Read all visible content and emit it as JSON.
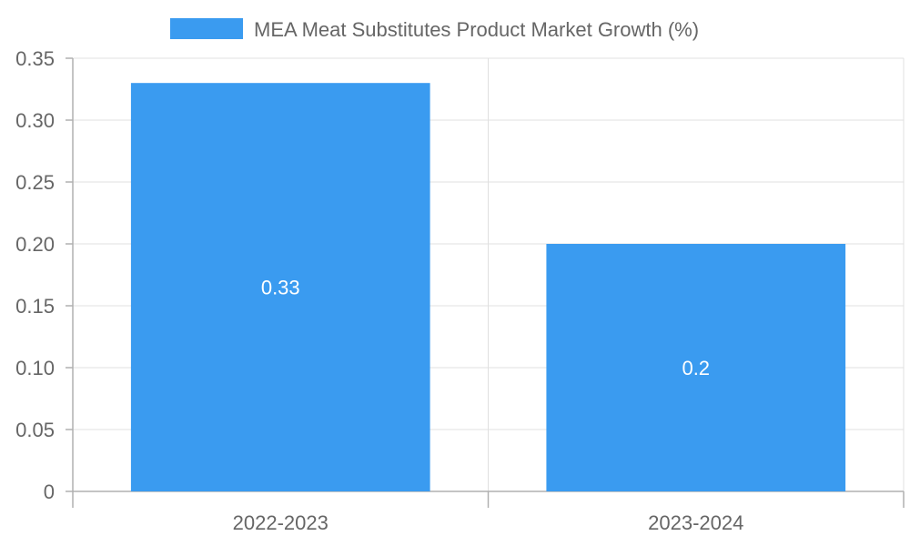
{
  "chart_data": {
    "type": "bar",
    "title": "",
    "xlabel": "",
    "ylabel": "",
    "categories": [
      "2022-2023",
      "2023-2024"
    ],
    "series": [
      {
        "name": "MEA Meat Substitutes Product Market Growth (%)",
        "values": [
          0.33,
          0.2
        ],
        "data_labels": [
          "0.33",
          "0.2"
        ],
        "color": "#3a9bf0"
      }
    ],
    "ylim": [
      0,
      0.35
    ],
    "yticks": [
      0,
      0.05,
      0.1,
      0.15,
      0.2,
      0.25,
      0.3,
      0.35
    ],
    "ytick_labels": [
      "0",
      "0.05",
      "0.10",
      "0.15",
      "0.20",
      "0.25",
      "0.30",
      "0.35"
    ],
    "grid": true,
    "legend_position": "top-center"
  },
  "colors": {
    "bar": "#3a9bf0",
    "text": "#666666",
    "grid": "#e0e0e0",
    "axis": "#b0b0b0"
  }
}
